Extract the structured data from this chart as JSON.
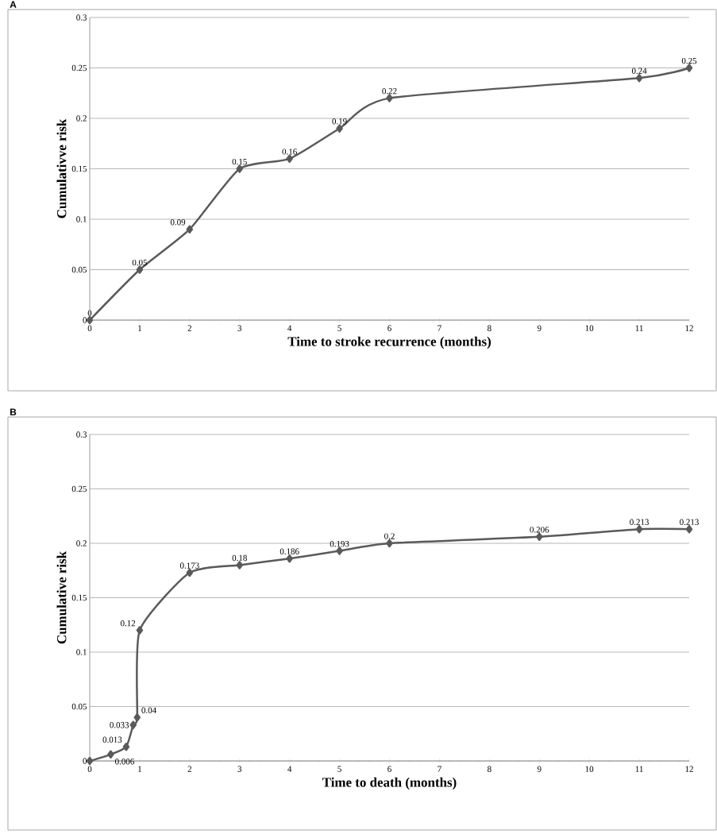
{
  "chart_data": [
    {
      "type": "line",
      "title": "A",
      "xlabel": "Time to stroke recurrence (months)",
      "ylabel": "Cumulativve risk",
      "x": [
        0,
        1,
        2,
        3,
        4,
        5,
        6,
        11,
        12
      ],
      "values": [
        0,
        0.05,
        0.09,
        0.15,
        0.16,
        0.19,
        0.22,
        0.24,
        0.25
      ],
      "color": "#5a5a5a",
      "marker": "diamond",
      "data_labels": true,
      "grid": "y",
      "xlim": [
        0,
        12
      ],
      "ylim": [
        0,
        0.3
      ],
      "xticks": [
        0,
        1,
        2,
        3,
        4,
        5,
        6,
        7,
        8,
        9,
        10,
        11,
        12
      ],
      "yticks": [
        0,
        0.05,
        0.1,
        0.15,
        0.2,
        0.25,
        0.3
      ]
    },
    {
      "type": "line",
      "title": "B",
      "xlabel": "Time to death (months)",
      "ylabel": "Cumulative risk",
      "x": [
        0,
        0.42,
        0.73,
        0.87,
        0.95,
        1,
        2,
        3,
        4,
        5,
        6,
        9,
        11,
        12
      ],
      "values": [
        0,
        0.006,
        0.013,
        0.033,
        0.04,
        0.12,
        0.173,
        0.18,
        0.186,
        0.193,
        0.2,
        0.206,
        0.213,
        0.213
      ],
      "value_labels": [
        null,
        "0.006",
        "0.013",
        "0.033",
        "0.04",
        "0.12",
        "0.173",
        "0.18",
        "0.186",
        "0.193",
        "0.2",
        "0.206",
        "0.213",
        "0.213"
      ],
      "color": "#5a5a5a",
      "marker": "diamond",
      "grid": "y",
      "xlim": [
        0,
        12
      ],
      "ylim": [
        0,
        0.3
      ],
      "xticks": [
        0,
        1,
        2,
        3,
        4,
        5,
        6,
        7,
        8,
        9,
        10,
        11,
        12
      ],
      "yticks": [
        0,
        0.05,
        0.1,
        0.15,
        0.2,
        0.25,
        0.3
      ]
    }
  ]
}
